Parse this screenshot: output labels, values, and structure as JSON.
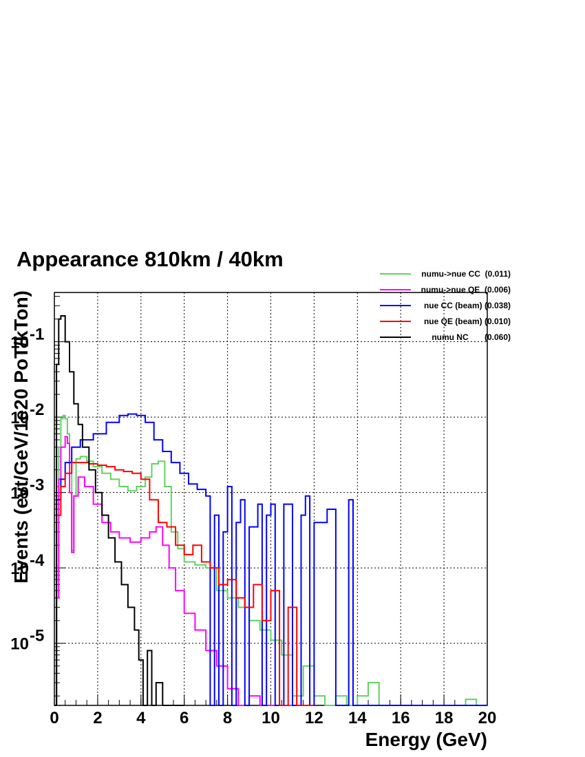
{
  "chart_data": {
    "type": "line",
    "title": "Appearance 810km / 40km",
    "xlabel": "Energy (GeV)",
    "ylabel": "Events (evt/GeV/1e20 PoT/kTon)",
    "xlim": [
      0,
      20
    ],
    "ylim": [
      1.5e-06,
      0.45
    ],
    "yscale": "log",
    "grid": true,
    "legend_position": "top-right",
    "x_ticks": [
      0,
      2,
      4,
      6,
      8,
      10,
      12,
      14,
      16,
      18,
      20
    ],
    "x_tick_labels": [
      "0",
      "2",
      "4",
      "6",
      "8",
      "10",
      "12",
      "14",
      "16",
      "18",
      "20"
    ],
    "y_ticks": [
      1e-05,
      0.0001,
      0.001,
      0.01,
      0.1
    ],
    "y_tick_labels": [
      {
        "base": "10",
        "exp": "-5"
      },
      {
        "base": "10",
        "exp": "-4"
      },
      {
        "base": "10",
        "exp": "-3"
      },
      {
        "base": "10",
        "exp": "-2"
      },
      {
        "base": "10",
        "exp": "-1"
      }
    ],
    "series": [
      {
        "legend": "numu->nue CC  (0.011)",
        "color": "#5fd35f",
        "points": [
          [
            0,
            0
          ],
          [
            0.1,
            0.0012
          ],
          [
            0.2,
            0.004
          ],
          [
            0.3,
            0.0095
          ],
          [
            0.4,
            0.0105
          ],
          [
            0.5,
            0.0095
          ],
          [
            0.6,
            0.006
          ],
          [
            0.7,
            0.0025
          ],
          [
            0.8,
            0.00017
          ],
          [
            0.9,
            0.0009
          ],
          [
            1.0,
            0.0028
          ],
          [
            1.2,
            0.003
          ],
          [
            1.5,
            0.0026
          ],
          [
            1.8,
            0.0022
          ],
          [
            2.2,
            0.0018
          ],
          [
            2.6,
            0.0015
          ],
          [
            3.0,
            0.0012
          ],
          [
            3.4,
            0.00105
          ],
          [
            3.8,
            0.0012
          ],
          [
            4.2,
            0.0016
          ],
          [
            4.5,
            0.0024
          ],
          [
            4.8,
            0.0026
          ],
          [
            5.1,
            0.0012
          ],
          [
            5.4,
            0.0003
          ],
          [
            5.7,
            0.00018
          ],
          [
            6.0,
            0.00012
          ],
          [
            6.5,
            0.00011
          ],
          [
            7.0,
            0.0001
          ],
          [
            7.5,
            5e-05
          ],
          [
            8.0,
            4e-05
          ],
          [
            8.5,
            3e-05
          ],
          [
            9.0,
            2e-05
          ],
          [
            9.5,
            1.5e-05
          ],
          [
            10.0,
            1.1e-05
          ],
          [
            10.5,
            7e-06
          ],
          [
            11.0,
            2e-06
          ],
          [
            11.5,
            5e-06
          ],
          [
            12.0,
            2e-06
          ],
          [
            12.5,
            1.5e-06
          ],
          [
            13.0,
            2e-06
          ],
          [
            13.5,
            1.5e-06
          ],
          [
            14.0,
            2e-06
          ],
          [
            14.5,
            3e-06
          ],
          [
            15.0,
            1.5e-06
          ],
          [
            16.0,
            1.5e-06
          ],
          [
            17.0,
            1.5e-06
          ],
          [
            18.0,
            1.5e-06
          ],
          [
            19.0,
            1.8e-06
          ],
          [
            19.5,
            1.5e-06
          ],
          [
            20.0,
            1.5e-06
          ]
        ]
      },
      {
        "legend": "numu->nue QE  (0.006)",
        "color": "#ff00ff",
        "points": [
          [
            0,
            1e-06
          ],
          [
            0.1,
            4e-05
          ],
          [
            0.2,
            0.0015
          ],
          [
            0.3,
            0.004
          ],
          [
            0.5,
            0.0055
          ],
          [
            0.6,
            0.0045
          ],
          [
            0.7,
            0.001
          ],
          [
            0.8,
            0.00016
          ],
          [
            0.9,
            0.0009
          ],
          [
            1.1,
            0.0016
          ],
          [
            1.4,
            0.0012
          ],
          [
            1.8,
            0.0007
          ],
          [
            2.2,
            0.0004
          ],
          [
            2.6,
            0.0003
          ],
          [
            3.0,
            0.00025
          ],
          [
            3.5,
            0.00022
          ],
          [
            4.0,
            0.00025
          ],
          [
            4.4,
            0.0003
          ],
          [
            4.7,
            0.00035
          ],
          [
            5.0,
            0.0002
          ],
          [
            5.3,
            0.0001
          ],
          [
            5.6,
            5e-05
          ],
          [
            6.0,
            2.5e-05
          ],
          [
            6.5,
            1.5e-05
          ],
          [
            7.0,
            8e-06
          ],
          [
            7.5,
            5e-06
          ],
          [
            8.0,
            2.5e-06
          ],
          [
            8.5,
            1.5e-06
          ],
          [
            9.0,
            2e-06
          ],
          [
            9.5,
            1.5e-06
          ],
          [
            10.0,
            1.5e-06
          ],
          [
            12.0,
            1.5e-06
          ]
        ]
      },
      {
        "legend": "nue CC (beam) (0.038)",
        "color": "#0000ff",
        "points": [
          [
            0,
            1e-06
          ],
          [
            0.1,
            0.0008
          ],
          [
            0.3,
            0.0015
          ],
          [
            0.5,
            0.0025
          ],
          [
            0.8,
            0.004
          ],
          [
            1.2,
            0.005
          ],
          [
            1.8,
            0.006
          ],
          [
            2.4,
            0.0085
          ],
          [
            3.0,
            0.0105
          ],
          [
            3.4,
            0.011
          ],
          [
            3.8,
            0.0105
          ],
          [
            4.2,
            0.0085
          ],
          [
            4.6,
            0.005
          ],
          [
            5.0,
            0.0035
          ],
          [
            5.4,
            0.0025
          ],
          [
            5.8,
            0.0018
          ],
          [
            6.2,
            0.0013
          ],
          [
            6.6,
            0.0011
          ],
          [
            7.0,
            0.0009
          ],
          [
            7.2,
            1.5e-06
          ],
          [
            7.4,
            0.0005
          ],
          [
            7.6,
            1.5e-06
          ],
          [
            7.8,
            0.0003
          ],
          [
            8.0,
            0.0012
          ],
          [
            8.2,
            1.5e-06
          ],
          [
            8.4,
            0.0004
          ],
          [
            8.6,
            0.0008
          ],
          [
            8.8,
            1.5e-06
          ],
          [
            9.0,
            0.00035
          ],
          [
            9.4,
            0.0007
          ],
          [
            9.6,
            1.5e-06
          ],
          [
            9.8,
            0.0005
          ],
          [
            10.0,
            0.0007
          ],
          [
            10.2,
            1.5e-06
          ],
          [
            10.6,
            0.0007
          ],
          [
            11.0,
            1.5e-06
          ],
          [
            11.4,
            0.0005
          ],
          [
            11.6,
            0.0009
          ],
          [
            11.8,
            1.5e-06
          ],
          [
            12.0,
            0.0004
          ],
          [
            12.6,
            0.0006
          ],
          [
            13.0,
            1.5e-06
          ],
          [
            13.6,
            0.0008
          ],
          [
            13.8,
            1.5e-06
          ],
          [
            20.0,
            1.5e-06
          ]
        ]
      },
      {
        "legend": "nue QE (beam) (0.010)",
        "color": "#ff0000",
        "points": [
          [
            0,
            1e-06
          ],
          [
            0.1,
            0.0005
          ],
          [
            0.3,
            0.0012
          ],
          [
            0.5,
            0.0018
          ],
          [
            0.8,
            0.0025
          ],
          [
            1.2,
            0.0025
          ],
          [
            1.6,
            0.0024
          ],
          [
            2.0,
            0.0023
          ],
          [
            2.4,
            0.0022
          ],
          [
            2.8,
            0.002
          ],
          [
            3.2,
            0.0019
          ],
          [
            3.6,
            0.0018
          ],
          [
            4.0,
            0.0015
          ],
          [
            4.4,
            0.0008
          ],
          [
            4.8,
            0.0004
          ],
          [
            5.2,
            0.00035
          ],
          [
            5.6,
            0.0002
          ],
          [
            6.0,
            0.00015
          ],
          [
            6.4,
            0.0002
          ],
          [
            6.8,
            0.00012
          ],
          [
            7.2,
            0.0001
          ],
          [
            7.6,
            6e-05
          ],
          [
            8.0,
            7e-05
          ],
          [
            8.4,
            4e-05
          ],
          [
            8.8,
            3e-05
          ],
          [
            9.2,
            6e-05
          ],
          [
            9.6,
            2e-05
          ],
          [
            10.0,
            5e-05
          ],
          [
            10.4,
            1.5e-06
          ],
          [
            10.8,
            3e-05
          ],
          [
            11.2,
            1.5e-06
          ],
          [
            12.0,
            1.5e-06
          ]
        ]
      },
      {
        "legend": "numu NC       (0.060)",
        "color": "#000000",
        "points": [
          [
            0,
            0
          ],
          [
            0.1,
            0.05
          ],
          [
            0.2,
            0.2
          ],
          [
            0.3,
            0.22
          ],
          [
            0.5,
            0.1
          ],
          [
            0.7,
            0.04
          ],
          [
            0.9,
            0.015
          ],
          [
            1.1,
            0.008
          ],
          [
            1.3,
            0.004
          ],
          [
            1.6,
            0.002
          ],
          [
            1.9,
            0.001
          ],
          [
            2.2,
            0.0005
          ],
          [
            2.5,
            0.00025
          ],
          [
            2.8,
            0.00012
          ],
          [
            3.1,
            6e-05
          ],
          [
            3.4,
            3e-05
          ],
          [
            3.7,
            1.5e-05
          ],
          [
            3.9,
            6e-06
          ],
          [
            4.1,
            1.5e-06
          ],
          [
            4.3,
            8e-06
          ],
          [
            4.5,
            1.5e-06
          ],
          [
            4.7,
            3e-06
          ],
          [
            5.0,
            1.5e-06
          ],
          [
            6.0,
            1.5e-06
          ]
        ]
      }
    ]
  }
}
